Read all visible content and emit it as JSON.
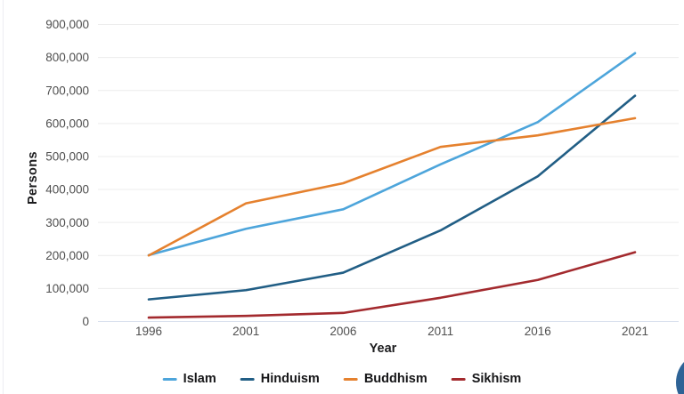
{
  "chart_data": {
    "type": "line",
    "title": "",
    "xlabel": "Year",
    "ylabel": "Persons",
    "categories": [
      "1996",
      "2001",
      "2006",
      "2011",
      "2016",
      "2021"
    ],
    "series": [
      {
        "name": "Islam",
        "color": "#4DA5DB",
        "values": [
          201000,
          281000,
          340000,
          476000,
          604000,
          813000
        ]
      },
      {
        "name": "Hinduism",
        "color": "#215E85",
        "values": [
          67000,
          95000,
          148000,
          276000,
          440000,
          684000
        ]
      },
      {
        "name": "Buddhism",
        "color": "#E5812E",
        "values": [
          200000,
          358000,
          419000,
          529000,
          564000,
          616000
        ]
      },
      {
        "name": "Sikhism",
        "color": "#A32A2E",
        "values": [
          12000,
          17000,
          26000,
          72000,
          126000,
          210000
        ]
      }
    ],
    "ylim": [
      0,
      900000
    ],
    "ytick_step": 100000,
    "yticks": [
      "0",
      "100,000",
      "200,000",
      "300,000",
      "400,000",
      "500,000",
      "600,000",
      "700,000",
      "800,000",
      "900,000"
    ],
    "grid": true,
    "legend_position": "bottom"
  },
  "styles": {
    "grid_color": "#ececec",
    "zero_line_color": "#d9e1ee",
    "tick_color": "#4f4f4f",
    "fab_color": "#2E6396"
  }
}
